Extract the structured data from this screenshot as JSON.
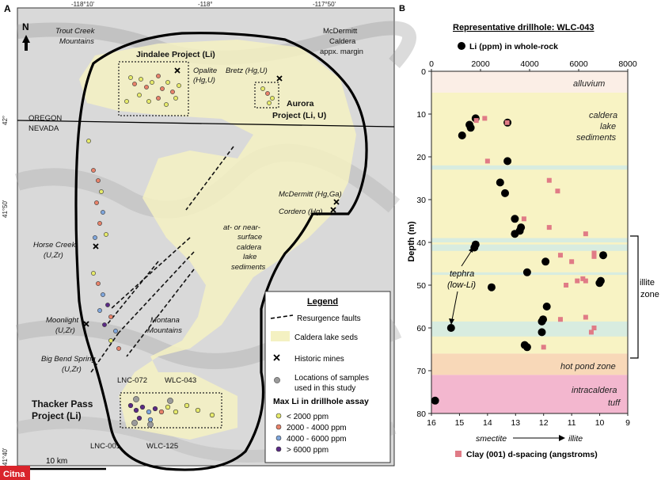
{
  "panel_a": {
    "letter": "A",
    "lon_ticks": [
      "-118°10'",
      "-118°",
      "-117°50'"
    ],
    "lat_ticks": [
      "42°",
      "41°50'",
      "41°40'"
    ],
    "north": "N",
    "states": {
      "oregon": "OREGON",
      "nevada": "NEVADA"
    },
    "places": {
      "trout_creek_1": "Trout Creek",
      "trout_creek_2": "Mountains",
      "mcdermitt_1": "McDermitt",
      "mcdermitt_2": "Caldera",
      "mcdermitt_3": "appx. margin",
      "jindalee": "Jindalee Project (Li)",
      "opalite_1": "Opalite",
      "opalite_2": "(Hg,U)",
      "bretz": "Bretz (Hg,U)",
      "aurora_1": "Aurora",
      "aurora_2": "Project (Li, U)",
      "mcdermitt_mine": "McDermitt (Hg,Ga)",
      "cordero": "Cordero (Hg)",
      "lake_1": "at- or near-",
      "lake_2": "surface",
      "lake_3": "caldera",
      "lake_4": "lake",
      "lake_5": "sediments",
      "horse_1": "Horse Creek",
      "horse_2": "(U,Zr)",
      "moon_1": "Moonlight",
      "moon_2": "(U,Zr)",
      "montana_1": "Montana",
      "montana_2": "Mountains",
      "bigbend_1": "Big Bend Spring",
      "bigbend_2": "(U,Zr)",
      "lnc072": "LNC-072",
      "wlc043": "WLC-043",
      "thacker_1": "Thacker Pass",
      "thacker_2": "Project (Li)",
      "lnc001": "LNC-001",
      "wlc125": "WLC-125"
    },
    "scale": "10 km",
    "legend": {
      "title": "Legend",
      "faults": "Resurgence faults",
      "seds": "Caldera lake seds",
      "mines": "Historic mines",
      "samples_1": "Locations of samples",
      "samples_2": "used in this study",
      "assay_title": "Max Li in drillhole assay",
      "bins": [
        "< 2000 ppm",
        "2000 - 4000 ppm",
        "4000 - 6000 ppm",
        "> 6000 ppm"
      ],
      "bin_colors": [
        "#e6ea6b",
        "#e8826a",
        "#7fa6dc",
        "#5b2a86"
      ]
    }
  },
  "panel_b": {
    "letter": "B",
    "title": "Representative drillhole: WLC-043",
    "li_legend": "Li (ppm) in whole-rock",
    "clay_legend": "Clay (001) d-spacing (angstroms)",
    "y_label": "Depth (m)",
    "smectite": "smectite",
    "illite": "illite",
    "zones": {
      "alluvium": "alluvium",
      "caldera_1": "caldera",
      "caldera_2": "lake",
      "caldera_3": "sediments",
      "hotpond": "hot pond zone",
      "tuff_1": "intracaldera",
      "tuff_2": "tuff"
    },
    "tephra_1": "tephra",
    "tephra_2": "(low-Li)",
    "illite_zone_1": "illite",
    "illite_zone_2": "zone",
    "zone_colors": {
      "alluvium": "#fbeee6",
      "lake": "#f8f3c4",
      "hotpond": "#f8d8b8",
      "tuff": "#f3b7cf",
      "tephra": "#d8ece0"
    },
    "watermark": "Citna"
  },
  "chart_data": {
    "type": "scatter",
    "title": "Representative drillhole: WLC-043",
    "ylabel": "Depth (m)",
    "ylim": [
      0,
      80
    ],
    "y_ticks": [
      0,
      10,
      20,
      30,
      40,
      50,
      60,
      70,
      80
    ],
    "x_top_ticks": [
      0,
      2000,
      4000,
      6000,
      8000
    ],
    "x_top_lim": [
      0,
      8000
    ],
    "x_bottom_ticks": [
      16,
      15,
      14,
      13,
      12,
      11,
      10,
      9
    ],
    "x_bottom_lim": [
      16,
      9
    ],
    "series": [
      {
        "name": "Li (ppm) in whole-rock",
        "axis": "top",
        "color": "#000000",
        "points": [
          {
            "x": 1800,
            "y": 11
          },
          {
            "x": 3100,
            "y": 12
          },
          {
            "x": 1550,
            "y": 12.5
          },
          {
            "x": 1600,
            "y": 13.2
          },
          {
            "x": 1250,
            "y": 15
          },
          {
            "x": 3100,
            "y": 21
          },
          {
            "x": 2800,
            "y": 26
          },
          {
            "x": 3000,
            "y": 28.5
          },
          {
            "x": 3400,
            "y": 34.5
          },
          {
            "x": 3650,
            "y": 36.5
          },
          {
            "x": 3600,
            "y": 37.3
          },
          {
            "x": 3400,
            "y": 38
          },
          {
            "x": 1800,
            "y": 40.5
          },
          {
            "x": 1750,
            "y": 41.2
          },
          {
            "x": 7000,
            "y": 43
          },
          {
            "x": 4650,
            "y": 44.5
          },
          {
            "x": 3900,
            "y": 47
          },
          {
            "x": 6900,
            "y": 49
          },
          {
            "x": 6850,
            "y": 49.5
          },
          {
            "x": 2450,
            "y": 50.5
          },
          {
            "x": 4700,
            "y": 55
          },
          {
            "x": 4550,
            "y": 58
          },
          {
            "x": 4500,
            "y": 58.5
          },
          {
            "x": 800,
            "y": 60
          },
          {
            "x": 4500,
            "y": 61
          },
          {
            "x": 3800,
            "y": 64
          },
          {
            "x": 3900,
            "y": 64.5
          },
          {
            "x": 150,
            "y": 77
          }
        ]
      },
      {
        "name": "Clay (001) d-spacing (angstroms)",
        "axis": "bottom",
        "color": "#e07b86",
        "points": [
          {
            "x": 14.1,
            "y": 11
          },
          {
            "x": 14.4,
            "y": 11.5
          },
          {
            "x": 13.3,
            "y": 12
          },
          {
            "x": 14.0,
            "y": 21
          },
          {
            "x": 11.8,
            "y": 25.5
          },
          {
            "x": 11.5,
            "y": 28
          },
          {
            "x": 12.7,
            "y": 34.5
          },
          {
            "x": 11.8,
            "y": 36.5
          },
          {
            "x": 10.5,
            "y": 38
          },
          {
            "x": 10.2,
            "y": 42.5
          },
          {
            "x": 10.2,
            "y": 43.3
          },
          {
            "x": 11.4,
            "y": 43
          },
          {
            "x": 11.0,
            "y": 44.5
          },
          {
            "x": 10.6,
            "y": 48.5
          },
          {
            "x": 10.8,
            "y": 49
          },
          {
            "x": 10.5,
            "y": 49
          },
          {
            "x": 11.2,
            "y": 50
          },
          {
            "x": 10.5,
            "y": 57.5
          },
          {
            "x": 11.4,
            "y": 58
          },
          {
            "x": 10.2,
            "y": 60
          },
          {
            "x": 10.3,
            "y": 61
          },
          {
            "x": 12.0,
            "y": 64.5
          }
        ]
      }
    ],
    "zones": [
      {
        "name": "alluvium",
        "from": 0,
        "to": 5
      },
      {
        "name": "caldera lake sediments",
        "from": 5,
        "to": 66
      },
      {
        "name": "hot pond zone",
        "from": 66,
        "to": 71
      },
      {
        "name": "intracaldera tuff",
        "from": 71,
        "to": 80
      }
    ]
  }
}
